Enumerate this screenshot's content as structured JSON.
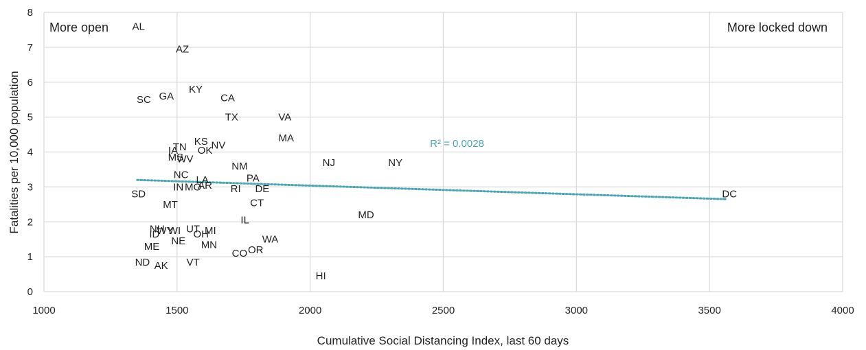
{
  "chart_data": {
    "type": "scatter",
    "title": "",
    "xlabel": "Cumulative Social Distancing Index, last 60 days",
    "ylabel": "Fatalities per 10,000 population",
    "xlim": [
      1000,
      4000
    ],
    "ylim": [
      0,
      8
    ],
    "x_ticks": [
      1000,
      1500,
      2000,
      2500,
      3000,
      3500,
      4000
    ],
    "y_ticks": [
      0,
      1,
      2,
      3,
      4,
      5,
      6,
      7,
      8
    ],
    "grid": true,
    "annotations": {
      "left": "More open",
      "right": "More locked down"
    },
    "trendline": {
      "style": "dotted",
      "color": "#4aa5b5",
      "r2_label": "R² = 0.0028",
      "x_start": 1350,
      "y_start": 3.2,
      "x_end": 3560,
      "y_end": 2.65
    },
    "points": [
      {
        "label": "AL",
        "x": 1355,
        "y": 7.6
      },
      {
        "label": "AZ",
        "x": 1520,
        "y": 6.95
      },
      {
        "label": "KY",
        "x": 1570,
        "y": 5.8
      },
      {
        "label": "CA",
        "x": 1690,
        "y": 5.55
      },
      {
        "label": "SC",
        "x": 1375,
        "y": 5.5
      },
      {
        "label": "GA",
        "x": 1460,
        "y": 5.6
      },
      {
        "label": "TX",
        "x": 1705,
        "y": 5.0
      },
      {
        "label": "VA",
        "x": 1905,
        "y": 5.0
      },
      {
        "label": "MA",
        "x": 1910,
        "y": 4.4
      },
      {
        "label": "KS",
        "x": 1590,
        "y": 4.3
      },
      {
        "label": "NV",
        "x": 1655,
        "y": 4.2
      },
      {
        "label": "TN",
        "x": 1510,
        "y": 4.15
      },
      {
        "label": "OK",
        "x": 1605,
        "y": 4.05
      },
      {
        "label": "IA",
        "x": 1485,
        "y": 4.05
      },
      {
        "label": "MS",
        "x": 1495,
        "y": 3.85
      },
      {
        "label": "WV",
        "x": 1530,
        "y": 3.8
      },
      {
        "label": "NM",
        "x": 1735,
        "y": 3.6
      },
      {
        "label": "NJ",
        "x": 2070,
        "y": 3.7
      },
      {
        "label": "NY",
        "x": 2320,
        "y": 3.7
      },
      {
        "label": "NC",
        "x": 1515,
        "y": 3.35
      },
      {
        "label": "PA",
        "x": 1785,
        "y": 3.25
      },
      {
        "label": "LA",
        "x": 1595,
        "y": 3.2
      },
      {
        "label": "AR",
        "x": 1605,
        "y": 3.05
      },
      {
        "label": "IN",
        "x": 1505,
        "y": 3.0
      },
      {
        "label": "MO",
        "x": 1560,
        "y": 3.0
      },
      {
        "label": "RI",
        "x": 1720,
        "y": 2.95
      },
      {
        "label": "DE",
        "x": 1820,
        "y": 2.95
      },
      {
        "label": "SD",
        "x": 1355,
        "y": 2.8
      },
      {
        "label": "MT",
        "x": 1475,
        "y": 2.5
      },
      {
        "label": "CT",
        "x": 1800,
        "y": 2.55
      },
      {
        "label": "DC",
        "x": 3575,
        "y": 2.8
      },
      {
        "label": "MD",
        "x": 2210,
        "y": 2.2
      },
      {
        "label": "IL",
        "x": 1755,
        "y": 2.05
      },
      {
        "label": "NH",
        "x": 1425,
        "y": 1.8
      },
      {
        "label": "UT",
        "x": 1560,
        "y": 1.8
      },
      {
        "label": "WY",
        "x": 1455,
        "y": 1.75
      },
      {
        "label": "WI",
        "x": 1490,
        "y": 1.75
      },
      {
        "label": "MI",
        "x": 1625,
        "y": 1.75
      },
      {
        "label": "ID",
        "x": 1415,
        "y": 1.65
      },
      {
        "label": "OH",
        "x": 1590,
        "y": 1.65
      },
      {
        "label": "NE",
        "x": 1505,
        "y": 1.45
      },
      {
        "label": "WA",
        "x": 1850,
        "y": 1.5
      },
      {
        "label": "MN",
        "x": 1620,
        "y": 1.35
      },
      {
        "label": "ME",
        "x": 1405,
        "y": 1.3
      },
      {
        "label": "OR",
        "x": 1795,
        "y": 1.2
      },
      {
        "label": "CO",
        "x": 1735,
        "y": 1.1
      },
      {
        "label": "ND",
        "x": 1370,
        "y": 0.85
      },
      {
        "label": "VT",
        "x": 1560,
        "y": 0.85
      },
      {
        "label": "AK",
        "x": 1440,
        "y": 0.75
      },
      {
        "label": "HI",
        "x": 2040,
        "y": 0.45
      }
    ]
  }
}
